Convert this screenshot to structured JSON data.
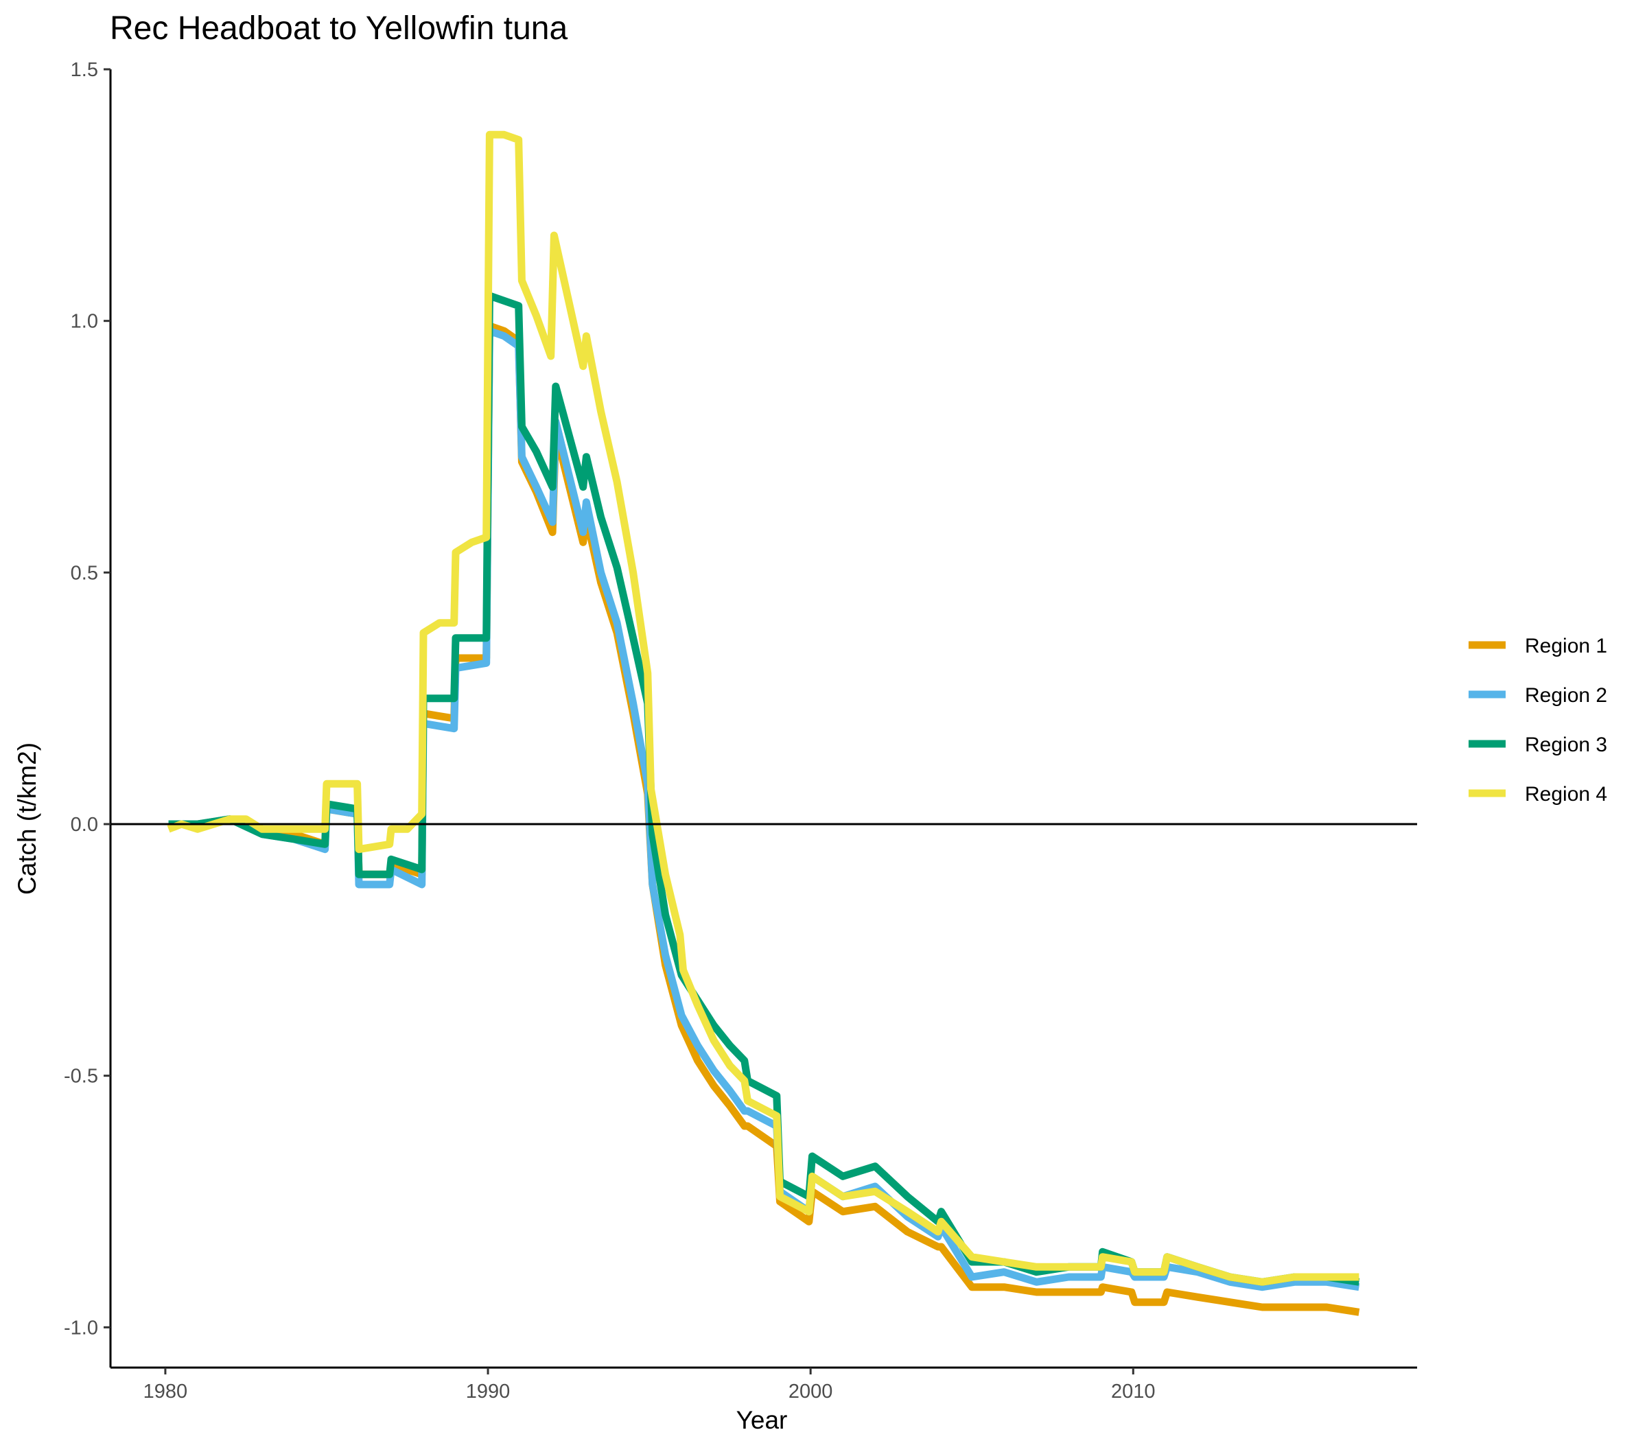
{
  "chart_data": {
    "type": "line",
    "title": "Rec Headboat to Yellowfin tuna",
    "xlabel": "Year",
    "ylabel": "Catch (t/km2)",
    "xlim": [
      1978.3,
      2018.8
    ],
    "ylim": [
      -1.08,
      1.5
    ],
    "x_ticks": [
      1980,
      1990,
      2000,
      2010
    ],
    "x_tick_labels": [
      "1980",
      "1990",
      "2000",
      "2010"
    ],
    "y_ticks": [
      -1.0,
      -0.5,
      0.0,
      0.5,
      1.0,
      1.5
    ],
    "y_tick_labels": [
      "-1.0",
      "-0.5",
      "0.0",
      "0.5",
      "1.0",
      "1.5"
    ],
    "reference_line_y": 0,
    "grid": false,
    "legend_position": "right",
    "series": [
      {
        "name": "Region 1",
        "color": "#E69F00",
        "points": [
          [
            1980.1,
            0.0
          ],
          [
            1981,
            0.0
          ],
          [
            1982,
            0.01
          ],
          [
            1983,
            -0.01
          ],
          [
            1984,
            -0.02
          ],
          [
            1984.95,
            -0.04
          ],
          [
            1985,
            0.03
          ],
          [
            1985.95,
            0.02
          ],
          [
            1986,
            -0.1
          ],
          [
            1986.95,
            -0.1
          ],
          [
            1987,
            -0.08
          ],
          [
            1987.95,
            -0.1
          ],
          [
            1988,
            0.22
          ],
          [
            1988.95,
            0.21
          ],
          [
            1989,
            0.33
          ],
          [
            1989.95,
            0.33
          ],
          [
            1990.05,
            0.99
          ],
          [
            1990.5,
            0.98
          ],
          [
            1990.95,
            0.96
          ],
          [
            1991.05,
            0.72
          ],
          [
            1991.5,
            0.66
          ],
          [
            1992,
            0.58
          ],
          [
            1992.1,
            0.78
          ],
          [
            1992.95,
            0.56
          ],
          [
            1993.05,
            0.61
          ],
          [
            1993.5,
            0.48
          ],
          [
            1994,
            0.38
          ],
          [
            1994.5,
            0.22
          ],
          [
            1994.95,
            0.06
          ],
          [
            1995.1,
            -0.12
          ],
          [
            1995.5,
            -0.28
          ],
          [
            1996,
            -0.4
          ],
          [
            1996.5,
            -0.47
          ],
          [
            1997,
            -0.52
          ],
          [
            1997.5,
            -0.56
          ],
          [
            1997.95,
            -0.6
          ],
          [
            1998.05,
            -0.6
          ],
          [
            1998.95,
            -0.64
          ],
          [
            1999.05,
            -0.75
          ],
          [
            1999.95,
            -0.79
          ],
          [
            2000.05,
            -0.73
          ],
          [
            2001,
            -0.77
          ],
          [
            2002,
            -0.76
          ],
          [
            2003,
            -0.81
          ],
          [
            2003.95,
            -0.84
          ],
          [
            2004.05,
            -0.84
          ],
          [
            2005,
            -0.92
          ],
          [
            2006,
            -0.92
          ],
          [
            2007,
            -0.93
          ],
          [
            2008,
            -0.93
          ],
          [
            2009,
            -0.93
          ],
          [
            2009.05,
            -0.92
          ],
          [
            2009.95,
            -0.93
          ],
          [
            2010.05,
            -0.95
          ],
          [
            2010.95,
            -0.95
          ],
          [
            2011.05,
            -0.93
          ],
          [
            2012,
            -0.94
          ],
          [
            2013,
            -0.95
          ],
          [
            2014,
            -0.96
          ],
          [
            2015,
            -0.96
          ],
          [
            2016,
            -0.96
          ],
          [
            2017,
            -0.97
          ]
        ]
      },
      {
        "name": "Region 2",
        "color": "#56B4E9",
        "points": [
          [
            1980.1,
            0.0
          ],
          [
            1981,
            0.0
          ],
          [
            1982,
            0.01
          ],
          [
            1983,
            -0.02
          ],
          [
            1984,
            -0.03
          ],
          [
            1984.95,
            -0.05
          ],
          [
            1985,
            0.03
          ],
          [
            1985.95,
            0.02
          ],
          [
            1986,
            -0.12
          ],
          [
            1986.95,
            -0.12
          ],
          [
            1987,
            -0.09
          ],
          [
            1987.95,
            -0.12
          ],
          [
            1988,
            0.2
          ],
          [
            1988.95,
            0.19
          ],
          [
            1989,
            0.31
          ],
          [
            1989.95,
            0.32
          ],
          [
            1990.05,
            0.98
          ],
          [
            1990.5,
            0.97
          ],
          [
            1990.95,
            0.95
          ],
          [
            1991.05,
            0.73
          ],
          [
            1991.5,
            0.67
          ],
          [
            1992,
            0.6
          ],
          [
            1992.1,
            0.8
          ],
          [
            1992.95,
            0.58
          ],
          [
            1993.05,
            0.64
          ],
          [
            1993.5,
            0.5
          ],
          [
            1994,
            0.4
          ],
          [
            1994.5,
            0.24
          ],
          [
            1994.95,
            0.08
          ],
          [
            1995.1,
            -0.12
          ],
          [
            1995.5,
            -0.26
          ],
          [
            1996,
            -0.38
          ],
          [
            1996.5,
            -0.44
          ],
          [
            1997,
            -0.49
          ],
          [
            1997.5,
            -0.53
          ],
          [
            1997.95,
            -0.57
          ],
          [
            1998.05,
            -0.57
          ],
          [
            1998.95,
            -0.6
          ],
          [
            1999.05,
            -0.73
          ],
          [
            1999.95,
            -0.77
          ],
          [
            2000.05,
            -0.7
          ],
          [
            2001,
            -0.74
          ],
          [
            2002,
            -0.72
          ],
          [
            2003,
            -0.78
          ],
          [
            2003.95,
            -0.82
          ],
          [
            2004.05,
            -0.8
          ],
          [
            2005,
            -0.9
          ],
          [
            2006,
            -0.89
          ],
          [
            2007,
            -0.91
          ],
          [
            2008,
            -0.9
          ],
          [
            2009,
            -0.9
          ],
          [
            2009.05,
            -0.88
          ],
          [
            2009.95,
            -0.89
          ],
          [
            2010.05,
            -0.9
          ],
          [
            2010.95,
            -0.9
          ],
          [
            2011.05,
            -0.88
          ],
          [
            2012,
            -0.89
          ],
          [
            2013,
            -0.91
          ],
          [
            2014,
            -0.92
          ],
          [
            2015,
            -0.91
          ],
          [
            2016,
            -0.91
          ],
          [
            2017,
            -0.92
          ]
        ]
      },
      {
        "name": "Region 3",
        "color": "#009E73",
        "points": [
          [
            1980.1,
            0.0
          ],
          [
            1981,
            0.0
          ],
          [
            1982,
            0.01
          ],
          [
            1983,
            -0.02
          ],
          [
            1984,
            -0.03
          ],
          [
            1984.95,
            -0.04
          ],
          [
            1985,
            0.04
          ],
          [
            1985.95,
            0.03
          ],
          [
            1986,
            -0.1
          ],
          [
            1986.95,
            -0.1
          ],
          [
            1987,
            -0.07
          ],
          [
            1987.95,
            -0.09
          ],
          [
            1988,
            0.25
          ],
          [
            1988.95,
            0.25
          ],
          [
            1989,
            0.37
          ],
          [
            1989.95,
            0.37
          ],
          [
            1990.05,
            1.05
          ],
          [
            1990.95,
            1.03
          ],
          [
            1991.05,
            0.79
          ],
          [
            1991.5,
            0.74
          ],
          [
            1992,
            0.67
          ],
          [
            1992.1,
            0.87
          ],
          [
            1992.95,
            0.67
          ],
          [
            1993.05,
            0.73
          ],
          [
            1993.5,
            0.61
          ],
          [
            1994,
            0.51
          ],
          [
            1994.5,
            0.37
          ],
          [
            1994.95,
            0.24
          ],
          [
            1995.1,
            -0.02
          ],
          [
            1995.5,
            -0.18
          ],
          [
            1996,
            -0.3
          ],
          [
            1996.5,
            -0.35
          ],
          [
            1997,
            -0.4
          ],
          [
            1997.5,
            -0.44
          ],
          [
            1997.95,
            -0.47
          ],
          [
            1998.05,
            -0.51
          ],
          [
            1998.95,
            -0.54
          ],
          [
            1999.05,
            -0.71
          ],
          [
            1999.95,
            -0.74
          ],
          [
            2000.05,
            -0.66
          ],
          [
            2001,
            -0.7
          ],
          [
            2002,
            -0.68
          ],
          [
            2003,
            -0.74
          ],
          [
            2003.95,
            -0.79
          ],
          [
            2004.05,
            -0.77
          ],
          [
            2005,
            -0.87
          ],
          [
            2006,
            -0.87
          ],
          [
            2007,
            -0.89
          ],
          [
            2008,
            -0.88
          ],
          [
            2009,
            -0.88
          ],
          [
            2009.05,
            -0.85
          ],
          [
            2009.95,
            -0.87
          ],
          [
            2010.05,
            -0.89
          ],
          [
            2010.95,
            -0.89
          ],
          [
            2011.05,
            -0.86
          ],
          [
            2012,
            -0.88
          ],
          [
            2013,
            -0.9
          ],
          [
            2014,
            -0.91
          ],
          [
            2015,
            -0.9
          ],
          [
            2016,
            -0.9
          ],
          [
            2017,
            -0.91
          ]
        ]
      },
      {
        "name": "Region 4",
        "color": "#F0E442",
        "points": [
          [
            1980.1,
            -0.01
          ],
          [
            1980.5,
            0.0
          ],
          [
            1981,
            -0.01
          ],
          [
            1981.5,
            0.0
          ],
          [
            1982,
            0.01
          ],
          [
            1982.5,
            0.01
          ],
          [
            1983,
            -0.01
          ],
          [
            1983.5,
            -0.01
          ],
          [
            1984,
            -0.01
          ],
          [
            1984.95,
            -0.01
          ],
          [
            1985,
            0.08
          ],
          [
            1985.95,
            0.08
          ],
          [
            1986,
            -0.05
          ],
          [
            1986.95,
            -0.04
          ],
          [
            1987,
            -0.01
          ],
          [
            1987.5,
            -0.01
          ],
          [
            1987.95,
            0.02
          ],
          [
            1988,
            0.38
          ],
          [
            1988.5,
            0.4
          ],
          [
            1988.95,
            0.4
          ],
          [
            1989,
            0.54
          ],
          [
            1989.5,
            0.56
          ],
          [
            1989.95,
            0.57
          ],
          [
            1990.05,
            1.37
          ],
          [
            1990.5,
            1.37
          ],
          [
            1990.95,
            1.36
          ],
          [
            1991.05,
            1.08
          ],
          [
            1991.5,
            1.01
          ],
          [
            1991.95,
            0.93
          ],
          [
            1992.05,
            1.17
          ],
          [
            1992.5,
            1.04
          ],
          [
            1992.95,
            0.91
          ],
          [
            1993.05,
            0.97
          ],
          [
            1993.5,
            0.82
          ],
          [
            1994,
            0.68
          ],
          [
            1994.5,
            0.5
          ],
          [
            1994.95,
            0.3
          ],
          [
            1995.05,
            0.07
          ],
          [
            1995.5,
            -0.1
          ],
          [
            1995.95,
            -0.22
          ],
          [
            1996.05,
            -0.29
          ],
          [
            1996.5,
            -0.36
          ],
          [
            1997,
            -0.43
          ],
          [
            1997.5,
            -0.48
          ],
          [
            1997.95,
            -0.51
          ],
          [
            1998.05,
            -0.55
          ],
          [
            1998.95,
            -0.58
          ],
          [
            1999.05,
            -0.74
          ],
          [
            1999.95,
            -0.77
          ],
          [
            2000.05,
            -0.7
          ],
          [
            2001,
            -0.74
          ],
          [
            2002,
            -0.73
          ],
          [
            2003,
            -0.77
          ],
          [
            2003.95,
            -0.81
          ],
          [
            2004.05,
            -0.79
          ],
          [
            2005,
            -0.86
          ],
          [
            2006,
            -0.87
          ],
          [
            2007,
            -0.88
          ],
          [
            2008,
            -0.88
          ],
          [
            2009,
            -0.88
          ],
          [
            2009.05,
            -0.86
          ],
          [
            2009.95,
            -0.87
          ],
          [
            2010.05,
            -0.89
          ],
          [
            2010.95,
            -0.89
          ],
          [
            2011.05,
            -0.86
          ],
          [
            2012,
            -0.88
          ],
          [
            2013,
            -0.9
          ],
          [
            2014,
            -0.91
          ],
          [
            2015,
            -0.9
          ],
          [
            2016,
            -0.9
          ],
          [
            2017,
            -0.9
          ]
        ]
      }
    ]
  }
}
